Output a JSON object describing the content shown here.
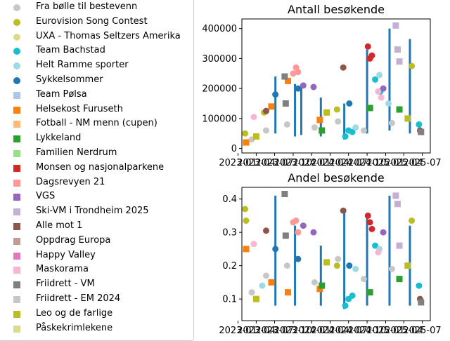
{
  "legend": [
    {
      "label": "Fra bølle til bestevenn",
      "color": "#c7c7c7",
      "marker": "circle"
    },
    {
      "label": "Eurovision Song Contest",
      "color": "#bcbd22",
      "marker": "circle"
    },
    {
      "label": "UXA - Thomas Seltzers Amerika",
      "color": "#dbdb8d",
      "marker": "circle"
    },
    {
      "label": "Team Bachstad",
      "color": "#17becf",
      "marker": "circle"
    },
    {
      "label": "Helt Ramme sporter",
      "color": "#9edae5",
      "marker": "circle"
    },
    {
      "label": "Sykkelsommer",
      "color": "#1f77b4",
      "marker": "circle"
    },
    {
      "label": "Team Pølsa",
      "color": "#aec7e8",
      "marker": "square"
    },
    {
      "label": "Helsekost Furuseth",
      "color": "#ff7f0e",
      "marker": "square"
    },
    {
      "label": "Fotball - NM menn (cupen)",
      "color": "#ffbb78",
      "marker": "square"
    },
    {
      "label": "Lykkeland",
      "color": "#2ca02c",
      "marker": "square"
    },
    {
      "label": "Familien Nerdrum",
      "color": "#98df8a",
      "marker": "square"
    },
    {
      "label": "Monsen og nasjonalparkene",
      "color": "#d62728",
      "marker": "square"
    },
    {
      "label": "Dagsrevyen 21",
      "color": "#ff9896",
      "marker": "square"
    },
    {
      "label": "VGS",
      "color": "#9467bd",
      "marker": "square"
    },
    {
      "label": "Ski-VM i Trondheim 2025",
      "color": "#c5b0d5",
      "marker": "square"
    },
    {
      "label": "Alle mot 1",
      "color": "#8c564b",
      "marker": "square"
    },
    {
      "label": "Oppdrag Europa",
      "color": "#c49c94",
      "marker": "square"
    },
    {
      "label": "Happy Valley",
      "color": "#e377c2",
      "marker": "square"
    },
    {
      "label": "Maskorama",
      "color": "#f7b6d2",
      "marker": "square"
    },
    {
      "label": "Friidrett - VM",
      "color": "#7f7f7f",
      "marker": "square"
    },
    {
      "label": "Friidrett - EM 2024",
      "color": "#c7c7c7",
      "marker": "square"
    },
    {
      "label": "Leo og de farlige",
      "color": "#bcbd22",
      "marker": "square"
    },
    {
      "label": "Påskekrimlekene",
      "color": "#dbdb8d",
      "marker": "square"
    }
  ],
  "chart_data": [
    {
      "type": "scatter",
      "title": "Antall besøkende",
      "xlabel": "",
      "ylabel": "",
      "ylim": [
        -15000,
        432000
      ],
      "xlim": [
        "2023-01-20",
        "2025-08-10"
      ],
      "x_ticks": [
        "2023-01",
        "2023-04",
        "2023-07",
        "2023-10",
        "2024-01",
        "2024-04",
        "2024-07",
        "2024-10",
        "2025-01",
        "2025-04",
        "2025-07"
      ],
      "x_tick_labels": [
        "2023-01",
        "2023-04",
        "2023-07",
        "2023-10",
        "2024-01",
        "2024-04",
        "2024-07",
        "2024-10",
        "2025-01",
        "2025-04",
        "2025-07"
      ],
      "y_ticks": [
        0,
        100000,
        200000,
        300000,
        400000
      ],
      "y_tick_labels": [
        "0",
        "100000",
        "200000",
        "300000",
        "400000"
      ],
      "stems": [
        {
          "x": "2023-07-05",
          "y0": 50000,
          "y1": 240000,
          "color": "#1f77b4"
        },
        {
          "x": "2023-10-10",
          "y0": 40000,
          "y1": 215000,
          "color": "#1f77b4"
        },
        {
          "x": "2023-11-10",
          "y0": 45000,
          "y1": 210000,
          "color": "#1f77b4"
        },
        {
          "x": "2024-02-15",
          "y0": 40000,
          "y1": 170000,
          "color": "#1f77b4"
        },
        {
          "x": "2024-06-10",
          "y0": 30000,
          "y1": 150000,
          "color": "#1f77b4"
        },
        {
          "x": "2024-10-01",
          "y0": 50000,
          "y1": 330000,
          "color": "#1f77b4"
        },
        {
          "x": "2025-01-20",
          "y0": 60000,
          "y1": 400000,
          "color": "#1f77b4"
        },
        {
          "x": "2025-05-01",
          "y0": 50000,
          "y1": 365000,
          "color": "#1f77b4"
        }
      ],
      "series": [
        {
          "name": "Fra bølle til bestevenn",
          "color": "#c7c7c7",
          "marker": "circle",
          "points": [
            [
              "2023-03-10",
              30000
            ],
            [
              "2023-05-20",
              60000
            ],
            [
              "2023-09-01",
              80000
            ],
            [
              "2024-01-15",
              70000
            ],
            [
              "2024-05-10",
              90000
            ],
            [
              "2024-09-15",
              60000
            ],
            [
              "2025-02-01",
              85000
            ]
          ]
        },
        {
          "name": "Eurovision Song Contest",
          "color": "#bcbd22",
          "marker": "circle",
          "points": [
            [
              "2023-02-05",
              50000
            ],
            [
              "2023-05-10",
              120000
            ],
            [
              "2024-05-05",
              130000
            ],
            [
              "2025-05-10",
              275000
            ]
          ]
        },
        {
          "name": "Team Bachstad",
          "color": "#17becf",
          "marker": "circle",
          "points": [
            [
              "2024-06-15",
              40000
            ],
            [
              "2024-07-01",
              60000
            ],
            [
              "2024-07-20",
              55000
            ],
            [
              "2024-11-10",
              230000
            ],
            [
              "2024-12-05",
              190000
            ],
            [
              "2025-06-15",
              80000
            ]
          ]
        },
        {
          "name": "Helt Ramme sporter",
          "color": "#9edae5",
          "marker": "circle",
          "points": [
            [
              "2024-08-05",
              70000
            ],
            [
              "2024-12-01",
              245000
            ],
            [
              "2025-01-15",
              150000
            ]
          ]
        },
        {
          "name": "Sykkelsommer",
          "color": "#1f77b4",
          "marker": "circle",
          "points": [
            [
              "2023-07-05",
              180000
            ],
            [
              "2023-10-25",
              200000
            ],
            [
              "2024-07-05",
              150000
            ]
          ]
        },
        {
          "name": "Helsekost Furuseth",
          "color": "#ff7f0e",
          "marker": "square",
          "points": [
            [
              "2023-02-10",
              20000
            ],
            [
              "2023-06-15",
              140000
            ],
            [
              "2023-09-05",
              225000
            ],
            [
              "2024-02-10",
              95000
            ]
          ]
        },
        {
          "name": "Lykkeland",
          "color": "#2ca02c",
          "marker": "square",
          "points": [
            [
              "2024-02-20",
              60000
            ],
            [
              "2024-10-15",
              135000
            ],
            [
              "2025-03-10",
              130000
            ]
          ]
        },
        {
          "name": "Monsen og nasjonalparkene",
          "color": "#d62728",
          "marker": "circle",
          "points": [
            [
              "2024-10-05",
              340000
            ],
            [
              "2024-10-15",
              300000
            ],
            [
              "2024-10-25",
              310000
            ]
          ]
        },
        {
          "name": "Dagsrevyen 21",
          "color": "#ff9896",
          "marker": "circle",
          "points": [
            [
              "2023-10-01",
              250000
            ],
            [
              "2023-10-15",
              270000
            ],
            [
              "2023-10-25",
              255000
            ]
          ]
        },
        {
          "name": "VGS",
          "color": "#9467bd",
          "marker": "circle",
          "points": [
            [
              "2023-11-20",
              210000
            ],
            [
              "2024-01-10",
              205000
            ],
            [
              "2024-12-20",
              200000
            ]
          ]
        },
        {
          "name": "Ski-VM i Trondheim 2025",
          "color": "#c5b0d5",
          "marker": "square",
          "points": [
            [
              "2025-02-20",
              410000
            ],
            [
              "2025-03-01",
              330000
            ],
            [
              "2025-03-10",
              290000
            ]
          ]
        },
        {
          "name": "Alle mot 1",
          "color": "#8c564b",
          "marker": "circle",
          "points": [
            [
              "2023-05-20",
              125000
            ],
            [
              "2024-06-05",
              270000
            ],
            [
              "2025-06-20",
              60000
            ]
          ]
        },
        {
          "name": "Maskorama",
          "color": "#f7b6d2",
          "marker": "circle",
          "points": [
            [
              "2023-03-20",
              105000
            ],
            [
              "2024-11-25",
              190000
            ],
            [
              "2024-12-10",
              170000
            ]
          ]
        },
        {
          "name": "Friidrett - VM",
          "color": "#7f7f7f",
          "marker": "square",
          "points": [
            [
              "2023-08-20",
              240000
            ],
            [
              "2023-08-25",
              150000
            ],
            [
              "2025-06-25",
              55000
            ]
          ]
        },
        {
          "name": "Leo og de farlige",
          "color": "#bcbd22",
          "marker": "square",
          "points": [
            [
              "2023-04-01",
              40000
            ],
            [
              "2024-03-15",
              120000
            ],
            [
              "2025-04-20",
              100000
            ]
          ]
        }
      ]
    },
    {
      "type": "scatter",
      "title": "Andel besøkende",
      "xlabel": "",
      "ylabel": "",
      "ylim": [
        0.035,
        0.435
      ],
      "xlim": [
        "2023-01-20",
        "2025-08-10"
      ],
      "x_ticks": [
        "2023-01",
        "2023-04",
        "2023-07",
        "2023-10",
        "2024-01",
        "2024-04",
        "2024-07",
        "2024-10",
        "2025-01",
        "2025-04",
        "2025-07"
      ],
      "x_tick_labels": [
        "2023-01",
        "2023-04",
        "2023-07",
        "2023-10",
        "2024-01",
        "2024-04",
        "2024-07",
        "2024-10",
        "2025-01",
        "2025-04",
        "2025-07"
      ],
      "y_ticks": [
        0.1,
        0.2,
        0.3,
        0.4
      ],
      "y_tick_labels": [
        "0.1",
        "0.2",
        "0.3",
        "0.4"
      ],
      "stems": [
        {
          "x": "2023-07-05",
          "y0": 0.08,
          "y1": 0.41,
          "color": "#1f77b4"
        },
        {
          "x": "2023-10-10",
          "y0": 0.08,
          "y1": 0.32,
          "color": "#1f77b4"
        },
        {
          "x": "2024-02-15",
          "y0": 0.08,
          "y1": 0.26,
          "color": "#1f77b4"
        },
        {
          "x": "2024-06-10",
          "y0": 0.07,
          "y1": 0.36,
          "color": "#1f77b4"
        },
        {
          "x": "2024-10-01",
          "y0": 0.08,
          "y1": 0.35,
          "color": "#1f77b4"
        },
        {
          "x": "2025-01-20",
          "y0": 0.08,
          "y1": 0.41,
          "color": "#1f77b4"
        },
        {
          "x": "2025-05-01",
          "y0": 0.08,
          "y1": 0.32,
          "color": "#1f77b4"
        }
      ],
      "series": [
        {
          "name": "Fra bølle til bestevenn",
          "color": "#c7c7c7",
          "marker": "circle",
          "points": [
            [
              "2023-03-10",
              0.12
            ],
            [
              "2023-05-20",
              0.17
            ],
            [
              "2023-09-01",
              0.2
            ],
            [
              "2024-01-15",
              0.15
            ],
            [
              "2024-05-10",
              0.22
            ],
            [
              "2024-09-15",
              0.16
            ],
            [
              "2025-02-01",
              0.19
            ]
          ]
        },
        {
          "name": "Eurovision Song Contest",
          "color": "#bcbd22",
          "marker": "circle",
          "points": [
            [
              "2023-02-05",
              0.37
            ],
            [
              "2023-02-10",
              0.335
            ],
            [
              "2024-05-05",
              0.2
            ],
            [
              "2025-05-10",
              0.335
            ]
          ]
        },
        {
          "name": "Team Bachstad",
          "color": "#17becf",
          "marker": "circle",
          "points": [
            [
              "2024-06-15",
              0.08
            ],
            [
              "2024-07-01",
              0.1
            ],
            [
              "2024-07-20",
              0.11
            ],
            [
              "2024-11-10",
              0.26
            ],
            [
              "2025-06-15",
              0.14
            ]
          ]
        },
        {
          "name": "Helt Ramme sporter",
          "color": "#9edae5",
          "marker": "circle",
          "points": [
            [
              "2023-05-01",
              0.14
            ],
            [
              "2024-08-05",
              0.19
            ],
            [
              "2024-12-01",
              0.25
            ]
          ]
        },
        {
          "name": "Sykkelsommer",
          "color": "#1f77b4",
          "marker": "circle",
          "points": [
            [
              "2023-07-05",
              0.25
            ],
            [
              "2023-10-25",
              0.22
            ],
            [
              "2024-07-05",
              0.2
            ]
          ]
        },
        {
          "name": "Helsekost Furuseth",
          "color": "#ff7f0e",
          "marker": "square",
          "points": [
            [
              "2023-02-10",
              0.25
            ],
            [
              "2023-06-15",
              0.15
            ],
            [
              "2023-09-05",
              0.12
            ],
            [
              "2024-02-10",
              0.13
            ]
          ]
        },
        {
          "name": "Lykkeland",
          "color": "#2ca02c",
          "marker": "square",
          "points": [
            [
              "2024-02-20",
              0.14
            ],
            [
              "2024-10-15",
              0.12
            ],
            [
              "2025-03-10",
              0.16
            ]
          ]
        },
        {
          "name": "Monsen og nasjonalparkene",
          "color": "#d62728",
          "marker": "circle",
          "points": [
            [
              "2024-10-05",
              0.35
            ],
            [
              "2024-10-15",
              0.33
            ],
            [
              "2024-10-25",
              0.31
            ]
          ]
        },
        {
          "name": "Dagsrevyen 21",
          "color": "#ff9896",
          "marker": "circle",
          "points": [
            [
              "2023-10-01",
              0.33
            ],
            [
              "2023-10-15",
              0.335
            ],
            [
              "2023-10-25",
              0.3
            ]
          ]
        },
        {
          "name": "VGS",
          "color": "#9467bd",
          "marker": "circle",
          "points": [
            [
              "2023-11-20",
              0.32
            ],
            [
              "2024-01-10",
              0.3
            ],
            [
              "2024-12-20",
              0.3
            ]
          ]
        },
        {
          "name": "Ski-VM i Trondheim 2025",
          "color": "#c5b0d5",
          "marker": "square",
          "points": [
            [
              "2025-02-20",
              0.41
            ],
            [
              "2025-03-01",
              0.385
            ],
            [
              "2025-03-10",
              0.26
            ]
          ]
        },
        {
          "name": "Alle mot 1",
          "color": "#8c564b",
          "marker": "circle",
          "points": [
            [
              "2023-05-20",
              0.305
            ],
            [
              "2024-06-05",
              0.365
            ],
            [
              "2025-06-20",
              0.1
            ]
          ]
        },
        {
          "name": "Maskorama",
          "color": "#f7b6d2",
          "marker": "circle",
          "points": [
            [
              "2023-03-20",
              0.265
            ],
            [
              "2024-11-25",
              0.24
            ]
          ]
        },
        {
          "name": "Friidrett - VM",
          "color": "#7f7f7f",
          "marker": "square",
          "points": [
            [
              "2023-08-20",
              0.415
            ],
            [
              "2023-08-25",
              0.29
            ],
            [
              "2025-06-25",
              0.09
            ]
          ]
        },
        {
          "name": "Leo og de farlige",
          "color": "#bcbd22",
          "marker": "square",
          "points": [
            [
              "2023-04-01",
              0.1
            ],
            [
              "2024-03-15",
              0.21
            ],
            [
              "2025-04-20",
              0.2
            ]
          ]
        }
      ]
    }
  ]
}
